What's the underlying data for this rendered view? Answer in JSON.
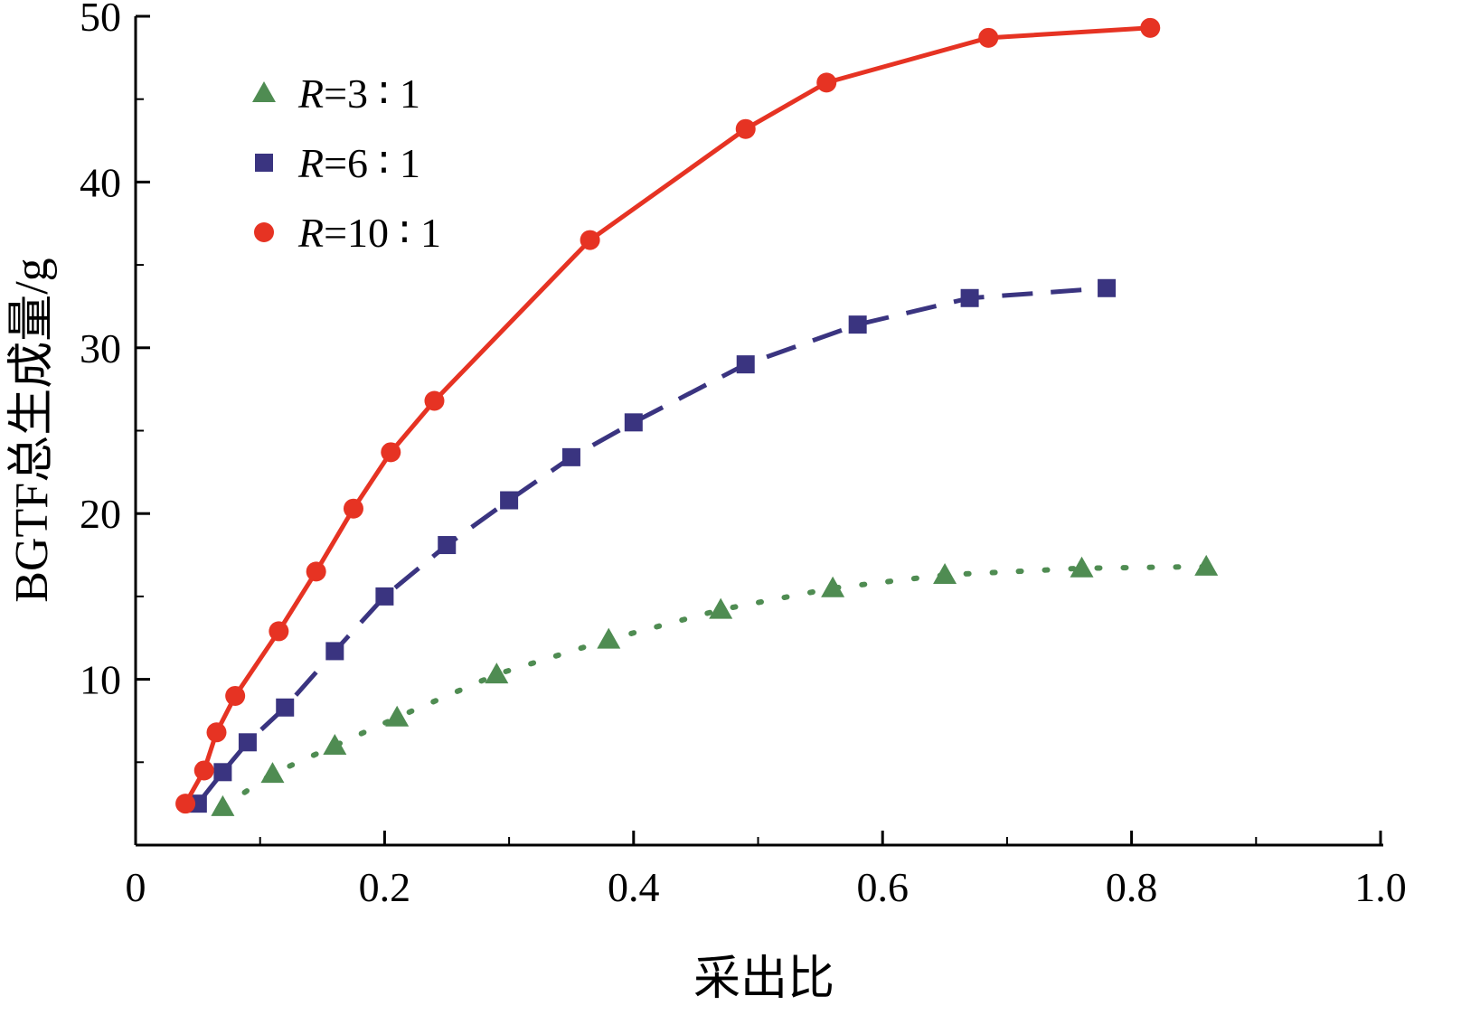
{
  "figure": {
    "background": "#ffffff"
  },
  "chart_data": {
    "type": "line",
    "title": "",
    "xlabel": "采出比",
    "ylabel": "BGTF总生成量/g",
    "xlim": [
      0,
      1.0
    ],
    "ylim": [
      0,
      50
    ],
    "x_major_ticks": [
      0,
      0.2,
      0.4,
      0.6,
      0.8,
      1.0
    ],
    "x_tick_labels": [
      "0",
      "0.2",
      "0.4",
      "0.6",
      "0.8",
      "1.0"
    ],
    "x_minor_step": 0.1,
    "y_major_ticks": [
      10,
      20,
      30,
      40,
      50
    ],
    "y_tick_labels": [
      "10",
      "20",
      "30",
      "40",
      "50"
    ],
    "y_minor_step": 5,
    "grid": false,
    "axis_color": "#000000",
    "legend": {
      "position": "upper-left-inside",
      "items": [
        "R=3 ∶ 1",
        "R=6 ∶ 1",
        "R=10 ∶ 1"
      ]
    },
    "series": [
      {
        "name": "R=3 ∶ 1",
        "color": "#4f8c52",
        "marker": "triangle",
        "line_style": "dotted",
        "points": [
          [
            0.07,
            2.3
          ],
          [
            0.11,
            4.3
          ],
          [
            0.16,
            6.0
          ],
          [
            0.21,
            7.7
          ],
          [
            0.29,
            10.3
          ],
          [
            0.38,
            12.4
          ],
          [
            0.47,
            14.2
          ],
          [
            0.56,
            15.5
          ],
          [
            0.65,
            16.3
          ],
          [
            0.76,
            16.7
          ],
          [
            0.86,
            16.8
          ]
        ]
      },
      {
        "name": "R=6 ∶ 1",
        "color": "#3a3480",
        "marker": "square",
        "line_style": "dashed",
        "points": [
          [
            0.05,
            2.5
          ],
          [
            0.07,
            4.4
          ],
          [
            0.09,
            6.2
          ],
          [
            0.12,
            8.3
          ],
          [
            0.16,
            11.7
          ],
          [
            0.2,
            15.0
          ],
          [
            0.25,
            18.1
          ],
          [
            0.3,
            20.8
          ],
          [
            0.35,
            23.4
          ],
          [
            0.4,
            25.5
          ],
          [
            0.49,
            29.0
          ],
          [
            0.58,
            31.4
          ],
          [
            0.67,
            33.0
          ],
          [
            0.78,
            33.6
          ]
        ]
      },
      {
        "name": "R=10 ∶ 1",
        "color": "#e63323",
        "marker": "circle",
        "line_style": "solid",
        "points": [
          [
            0.04,
            2.5
          ],
          [
            0.055,
            4.5
          ],
          [
            0.065,
            6.8
          ],
          [
            0.08,
            9.0
          ],
          [
            0.115,
            12.9
          ],
          [
            0.145,
            16.5
          ],
          [
            0.175,
            20.3
          ],
          [
            0.205,
            23.7
          ],
          [
            0.24,
            26.8
          ],
          [
            0.365,
            36.5
          ],
          [
            0.49,
            43.2
          ],
          [
            0.555,
            46.0
          ],
          [
            0.685,
            48.7
          ],
          [
            0.815,
            49.3
          ]
        ]
      }
    ]
  }
}
